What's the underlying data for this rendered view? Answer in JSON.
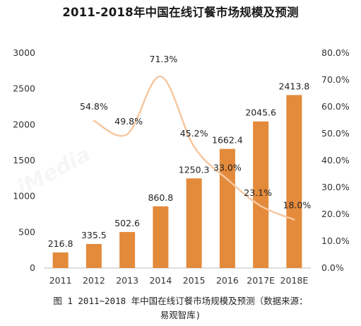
{
  "chart_data": {
    "type": "bar",
    "title": "2011-2018年中国在线订餐市场规模及预测",
    "categories": [
      "2011",
      "2012",
      "2013",
      "2014",
      "2015",
      "2016",
      "2017E",
      "2018E"
    ],
    "series": [
      {
        "kind": "bar",
        "axis": "left",
        "values": [
          216.8,
          335.5,
          502.6,
          860.8,
          1250.3,
          1662.4,
          2045.6,
          2413.8
        ],
        "value_labels": [
          "216.8",
          "335.5",
          "502.6",
          "860.8",
          "1250.3",
          "1662.4",
          "2045.6",
          "2413.8"
        ],
        "color": "#E38A3B"
      },
      {
        "kind": "line",
        "axis": "right",
        "values": [
          null,
          54.8,
          49.8,
          71.3,
          45.2,
          33.0,
          23.1,
          18.0
        ],
        "value_labels": [
          "",
          "54.8%",
          "49.8%",
          "71.3%",
          "45.2%",
          "33.0%",
          "23.1%",
          "18.0%"
        ],
        "color": "#F7C7A0"
      }
    ],
    "ylim_left": [
      0,
      3000
    ],
    "yticks_left": [
      "0",
      "500",
      "1000",
      "1500",
      "2000",
      "2500",
      "3000"
    ],
    "ylim_right": [
      0,
      80
    ],
    "yticks_right": [
      "0.0%",
      "10.0%",
      "20.0%",
      "30.0%",
      "40.0%",
      "50.0%",
      "60.0%",
      "70.0%",
      "80.0%"
    ],
    "grid": false,
    "legend": "none"
  },
  "caption": {
    "line1": "图 1 2011~2018 年中国在线订餐市场规模及预测（数据来源：",
    "line2": "易观智库)"
  },
  "watermark": {
    "text": "iMedia"
  }
}
